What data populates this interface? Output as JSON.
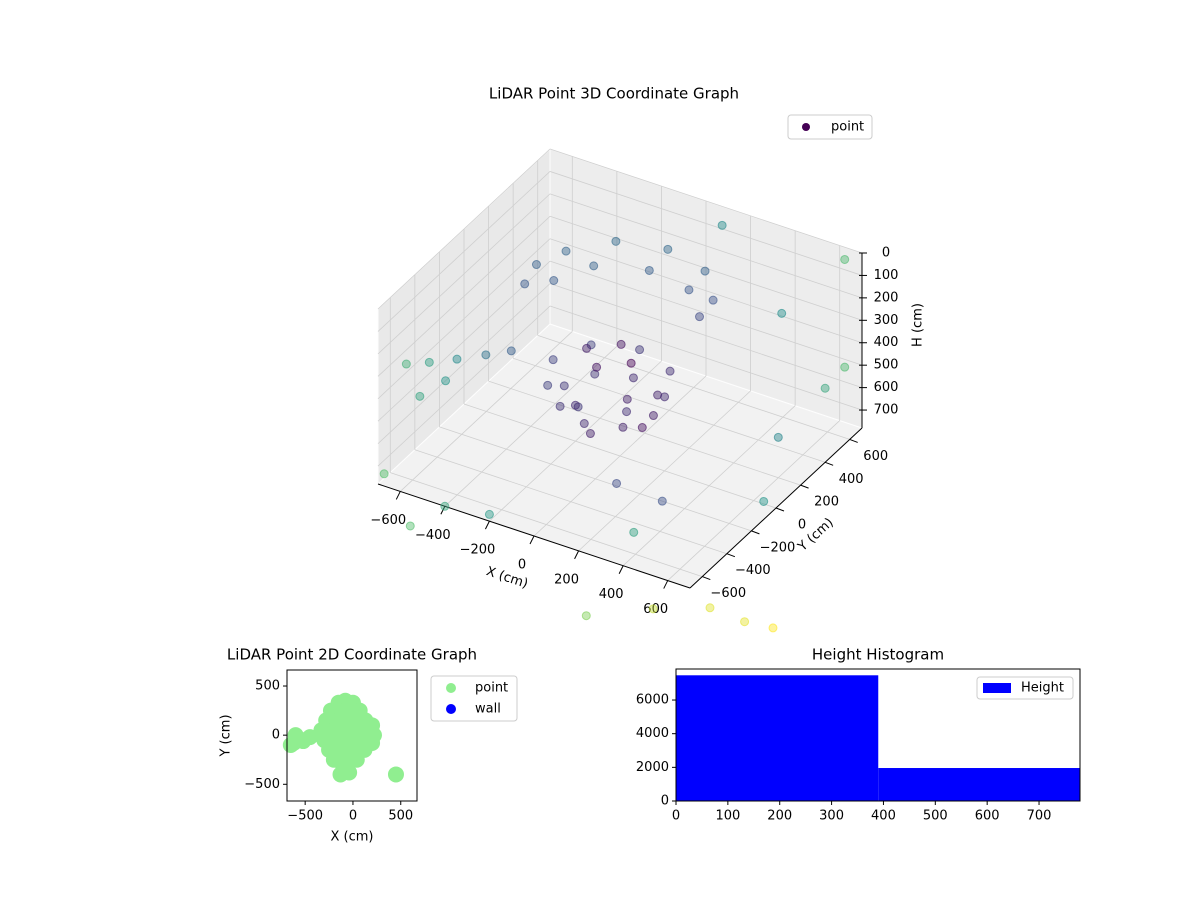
{
  "chart_data": [
    {
      "type": "scatter3d",
      "title": "LiDAR Point 3D Coordinate Graph",
      "xlabel": "X (cm)",
      "ylabel": "Y (cm)",
      "zlabel": "H (cm)",
      "legend": "upper right",
      "colormap": "viridis",
      "xlim": [
        -700,
        700
      ],
      "ylim": [
        -700,
        700
      ],
      "zlim": [
        780,
        0
      ],
      "xticks": [
        {
          "value": -600,
          "label": "−600"
        },
        {
          "value": -400,
          "label": "−400"
        },
        {
          "value": -200,
          "label": "−200"
        },
        0,
        200,
        400,
        600
      ],
      "yticks": [
        {
          "value": -600,
          "label": "−600"
        },
        {
          "value": -400,
          "label": "−400"
        },
        {
          "value": -200,
          "label": "−200"
        },
        0,
        200,
        400,
        600
      ],
      "zticks": [
        0,
        100,
        200,
        300,
        400,
        500,
        600,
        700
      ],
      "series": [
        {
          "name": "point",
          "color": "#440154",
          "x": [
            150,
            91,
            -50,
            -191,
            -250,
            -191,
            -50,
            91,
            200,
            127,
            -50,
            -227,
            -300,
            -227,
            -50,
            127,
            100,
            -50,
            -200,
            -50,
            50,
            -50,
            -150,
            -50,
            280,
            150,
            -50,
            -250,
            -380,
            -430,
            -400,
            230,
            100,
            -100,
            -300,
            -380,
            -350,
            -420,
            -500,
            -580,
            -650,
            150,
            420,
            100,
            650,
            450,
            700,
            600,
            -700,
            -650,
            -400,
            -700,
            -200,
            -500,
            700,
            650,
            300,
            900,
            1000,
            700,
            1100,
            400
          ],
          "y": [
            0,
            141,
            200,
            141,
            0,
            -141,
            -200,
            -141,
            0,
            177,
            250,
            177,
            0,
            -177,
            -250,
            -177,
            0,
            150,
            0,
            -150,
            0,
            100,
            0,
            -100,
            250,
            420,
            480,
            420,
            250,
            100,
            -50,
            230,
            380,
            420,
            330,
            150,
            -250,
            -330,
            -420,
            -500,
            -560,
            -300,
            -650,
            650,
            650,
            500,
            400,
            200,
            -150,
            -450,
            -700,
            -650,
            -700,
            -800,
            -100,
            650,
            -200,
            -900,
            -800,
            -1000,
            -750,
            -1000
          ],
          "z": [
            550,
            550,
            550,
            550,
            550,
            550,
            550,
            550,
            450,
            450,
            450,
            450,
            450,
            450,
            450,
            450,
            620,
            620,
            620,
            620,
            350,
            350,
            350,
            350,
            120,
            120,
            120,
            120,
            120,
            120,
            120,
            200,
            200,
            200,
            200,
            200,
            300,
            300,
            300,
            300,
            300,
            700,
            650,
            50,
            20,
            250,
            450,
            600,
            600,
            500,
            780,
            760,
            750,
            850,
            700,
            500,
            780,
            700,
            780,
            720,
            800,
            850
          ]
        }
      ]
    },
    {
      "type": "scatter",
      "title": "LiDAR Point 2D Coordinate Graph",
      "xlabel": "X (cm)",
      "ylabel": "Y (cm)",
      "legend": "right",
      "xlim": [
        -690,
        670
      ],
      "ylim": [
        -670,
        663
      ],
      "xticks": [
        {
          "value": -500,
          "label": "−500"
        },
        0,
        500
      ],
      "yticks": [
        {
          "value": -500,
          "label": "−500"
        },
        0,
        500
      ],
      "series": [
        {
          "name": "point",
          "color": "#90ee90",
          "x": [
            -80,
            -150,
            0,
            -230,
            -80,
            70,
            -280,
            -150,
            0,
            130,
            200,
            -330,
            -200,
            -80,
            50,
            180,
            220,
            -300,
            -180,
            -60,
            70,
            200,
            -250,
            -120,
            0,
            120,
            -200,
            -80,
            40,
            -100,
            -130,
            -40,
            -620,
            -600,
            -560,
            -650,
            -520,
            -450,
            450
          ],
          "y": [
            350,
            330,
            330,
            250,
            250,
            250,
            150,
            150,
            150,
            150,
            100,
            50,
            50,
            50,
            50,
            50,
            0,
            -50,
            -50,
            -50,
            -50,
            -80,
            -150,
            -150,
            -150,
            -150,
            -250,
            -250,
            -250,
            -330,
            -400,
            -380,
            -80,
            0,
            -40,
            -100,
            -60,
            -20,
            -400
          ]
        },
        {
          "name": "wall",
          "color": "#0000ff",
          "x": [],
          "y": []
        }
      ]
    },
    {
      "type": "histogram",
      "title": "Height Histogram",
      "legend": "upper right",
      "bins": [
        0,
        390,
        779
      ],
      "xlim": [
        0,
        779
      ],
      "ylim": [
        0,
        7844
      ],
      "xticks": [
        0,
        100,
        200,
        300,
        400,
        500,
        600,
        700
      ],
      "yticks": [
        0,
        2000,
        4000,
        6000
      ],
      "series": [
        {
          "name": "Height",
          "color": "#0000ff",
          "values": [
            7470,
            1960
          ]
        }
      ]
    }
  ]
}
